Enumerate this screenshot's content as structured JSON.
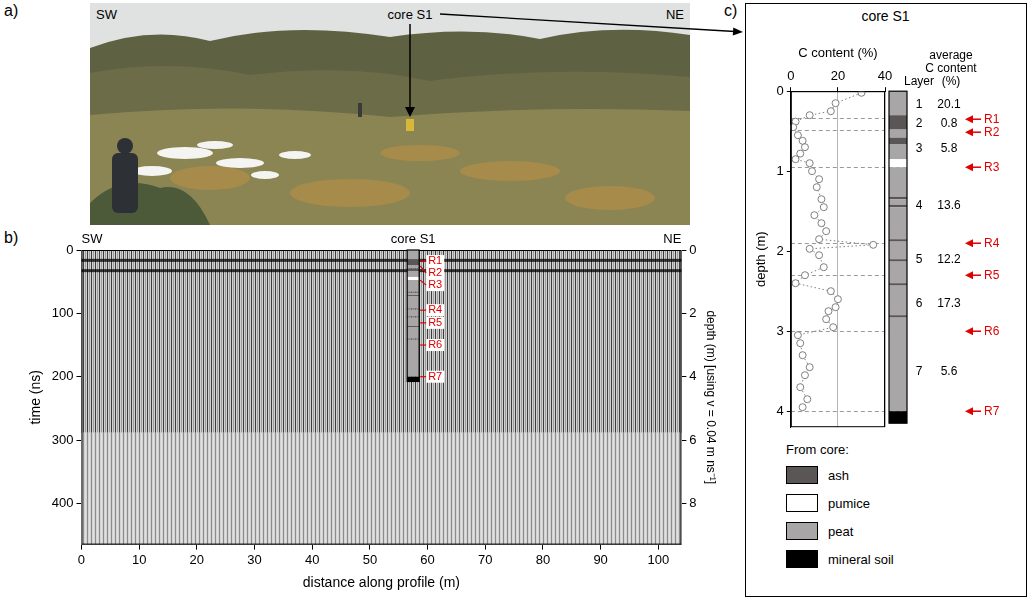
{
  "photo": {
    "panel": "a)",
    "left_label": "SW",
    "right_label": "NE",
    "label": "core S1"
  },
  "core_layers": [
    {
      "top": 0,
      "bottom": 0.3,
      "material": "peat"
    },
    {
      "top": 0.3,
      "bottom": 0.48,
      "material": "ash"
    },
    {
      "top": 0.48,
      "bottom": 0.58,
      "material": "peat"
    },
    {
      "top": 0.58,
      "bottom": 0.66,
      "material": "ash"
    },
    {
      "top": 0.66,
      "bottom": 0.85,
      "material": "peat"
    },
    {
      "top": 0.85,
      "bottom": 0.95,
      "material": "pumice"
    },
    {
      "top": 0.95,
      "bottom": 1.32,
      "material": "peat"
    },
    {
      "top": 1.32,
      "bottom": 1.35,
      "material": "ash"
    },
    {
      "top": 1.35,
      "bottom": 1.42,
      "material": "peat"
    },
    {
      "top": 1.42,
      "bottom": 1.45,
      "material": "ash"
    },
    {
      "top": 1.45,
      "bottom": 1.85,
      "material": "peat"
    },
    {
      "top": 1.85,
      "bottom": 1.88,
      "material": "ash"
    },
    {
      "top": 1.88,
      "bottom": 2.1,
      "material": "peat"
    },
    {
      "top": 2.1,
      "bottom": 2.13,
      "material": "ash"
    },
    {
      "top": 2.13,
      "bottom": 2.4,
      "material": "peat"
    },
    {
      "top": 2.4,
      "bottom": 2.43,
      "material": "ash"
    },
    {
      "top": 2.43,
      "bottom": 2.8,
      "material": "peat"
    },
    {
      "top": 2.8,
      "bottom": 2.83,
      "material": "ash"
    },
    {
      "top": 2.83,
      "bottom": 4.0,
      "material": "peat"
    },
    {
      "top": 4.0,
      "bottom": 4.15,
      "material": "mineral soil"
    }
  ],
  "reflectors": [
    {
      "label": "R1",
      "depth": 0.35
    },
    {
      "label": "R2",
      "depth": 0.5
    },
    {
      "label": "R3",
      "depth": 0.95
    },
    {
      "label": "R4",
      "depth": 1.9
    },
    {
      "label": "R5",
      "depth": 2.3
    },
    {
      "label": "R6",
      "depth": 3.0
    },
    {
      "label": "R7",
      "depth": 4.0
    }
  ],
  "chart_data": [
    {
      "panel": "b)",
      "type": "radargram",
      "x_label": "distance along profile (m)",
      "y_label": "time (ns)",
      "y2_label": "depth (m) [using v = 0.04 m ns⁻¹]",
      "xlim": [
        0,
        104
      ],
      "xticks": [
        0,
        10,
        20,
        30,
        40,
        50,
        60,
        70,
        80,
        90,
        100
      ],
      "ylim": [
        0,
        465
      ],
      "yticks": [
        0,
        100,
        200,
        300,
        400
      ],
      "y2lim": [
        0,
        9.3
      ],
      "y2ticks": [
        0,
        2,
        4,
        6,
        8
      ],
      "left_label": "SW",
      "right_label": "NE",
      "core": {
        "label": "core S1",
        "x": 57.5
      }
    },
    {
      "panel": "c)",
      "type": "scatter",
      "title": "core S1",
      "x_label": "C content (%)",
      "y_label": "depth (m)",
      "xlim": [
        0,
        40
      ],
      "xticks": [
        0,
        20,
        40
      ],
      "ylim": [
        0,
        4.2
      ],
      "yticks": [
        0,
        1,
        2,
        3,
        4
      ],
      "grid": "x",
      "marker": "circle",
      "line_style": "dotted",
      "color": "#7f7f7f",
      "points": [
        [
          30,
          0.02
        ],
        [
          19,
          0.15
        ],
        [
          17,
          0.25
        ],
        [
          8,
          0.3
        ],
        [
          2,
          0.38
        ],
        [
          1,
          0.45
        ],
        [
          3,
          0.55
        ],
        [
          5,
          0.62
        ],
        [
          6,
          0.7
        ],
        [
          4,
          0.78
        ],
        [
          2,
          0.85
        ],
        [
          8,
          0.9
        ],
        [
          9,
          1.0
        ],
        [
          12,
          1.1
        ],
        [
          11,
          1.2
        ],
        [
          13,
          1.35
        ],
        [
          14,
          1.45
        ],
        [
          10,
          1.55
        ],
        [
          13,
          1.65
        ],
        [
          15,
          1.75
        ],
        [
          12,
          1.85
        ],
        [
          35,
          1.92
        ],
        [
          8,
          1.97
        ],
        [
          12,
          2.05
        ],
        [
          14,
          2.2
        ],
        [
          6,
          2.3
        ],
        [
          2,
          2.4
        ],
        [
          17,
          2.5
        ],
        [
          20,
          2.6
        ],
        [
          19,
          2.7
        ],
        [
          16,
          2.75
        ],
        [
          15,
          2.85
        ],
        [
          18,
          2.95
        ],
        [
          3,
          3.05
        ],
        [
          4,
          3.15
        ],
        [
          5,
          3.3
        ],
        [
          8,
          3.45
        ],
        [
          6,
          3.55
        ],
        [
          4,
          3.7
        ],
        [
          7,
          3.85
        ],
        [
          5,
          3.95
        ]
      ],
      "layer_header": "Layer",
      "average_header": "average C content (%)",
      "layers": [
        {
          "label": 1,
          "top": 0,
          "bottom": 0.33,
          "average": 20.1
        },
        {
          "label": 2,
          "top": 0.33,
          "bottom": 0.48,
          "average": 0.8
        },
        {
          "label": 3,
          "top": 0.48,
          "bottom": 0.95,
          "average": 5.8
        },
        {
          "label": 4,
          "top": 0.95,
          "bottom": 1.9,
          "average": 13.6
        },
        {
          "label": 5,
          "top": 1.9,
          "bottom": 2.3,
          "average": 12.2
        },
        {
          "label": 6,
          "top": 2.3,
          "bottom": 3.0,
          "average": 17.3
        },
        {
          "label": 7,
          "top": 3.0,
          "bottom": 4.0,
          "average": 5.6
        }
      ]
    }
  ],
  "core_legend": {
    "title": "From core:",
    "items": [
      {
        "label": "ash",
        "color": "#5b5656"
      },
      {
        "label": "pumice",
        "color": "#ffffff"
      },
      {
        "label": "peat",
        "color": "#a8a6a6"
      },
      {
        "label": "mineral soil",
        "color": "#000000"
      }
    ]
  }
}
